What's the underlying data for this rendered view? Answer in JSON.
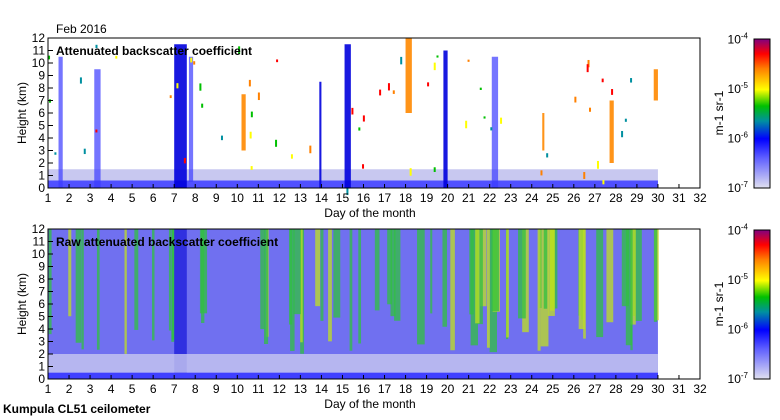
{
  "header": {
    "month_label": "Feb 2016"
  },
  "footer": {
    "site_label": "Kumpula CL51 ceilometer"
  },
  "chart_data": [
    {
      "type": "heatmap",
      "title": "Attenuated backscatter coefficient",
      "xlabel": "Day of the month",
      "ylabel": "Height (km)",
      "xlim": [
        1,
        32
      ],
      "ylim": [
        0,
        12
      ],
      "xticks": [
        "1",
        "2",
        "3",
        "4",
        "5",
        "6",
        "7",
        "8",
        "9",
        "10",
        "11",
        "12",
        "13",
        "14",
        "15",
        "16",
        "17",
        "18",
        "19",
        "20",
        "21",
        "22",
        "23",
        "24",
        "25",
        "26",
        "27",
        "28",
        "29",
        "30",
        "31",
        "32"
      ],
      "yticks": [
        "0",
        "1",
        "2",
        "3",
        "4",
        "5",
        "6",
        "7",
        "8",
        "9",
        "10",
        "11",
        "12"
      ],
      "data_end_day": 30,
      "boundary_layer_top_km": 1.5,
      "features": [
        {
          "day_start": 1.5,
          "day_end": 1.7,
          "h_bottom": 0,
          "h_top": 10.5,
          "level": "low"
        },
        {
          "day_start": 3.2,
          "day_end": 3.5,
          "h_bottom": 0,
          "h_top": 9.5,
          "level": "low"
        },
        {
          "day_start": 7.0,
          "day_end": 7.6,
          "h_bottom": 0,
          "h_top": 11.5,
          "level": "mid"
        },
        {
          "day_start": 7.7,
          "day_end": 7.9,
          "h_bottom": 0.5,
          "h_top": 10.5,
          "level": "low"
        },
        {
          "day_start": 10.2,
          "day_end": 10.4,
          "h_bottom": 3,
          "h_top": 7.5,
          "level": "high"
        },
        {
          "day_start": 13.9,
          "day_end": 14.0,
          "h_bottom": 0,
          "h_top": 8.5,
          "level": "mid"
        },
        {
          "day_start": 15.1,
          "day_end": 15.4,
          "h_bottom": 0,
          "h_top": 11.5,
          "level": "mid"
        },
        {
          "day_start": 18.0,
          "day_end": 18.3,
          "h_bottom": 6,
          "h_top": 12,
          "level": "high"
        },
        {
          "day_start": 19.8,
          "day_end": 20.0,
          "h_bottom": 0,
          "h_top": 11,
          "level": "mid"
        },
        {
          "day_start": 22.1,
          "day_end": 22.4,
          "h_bottom": 0,
          "h_top": 10.5,
          "level": "low"
        },
        {
          "day_start": 24.5,
          "day_end": 24.6,
          "h_bottom": 3,
          "h_top": 6,
          "level": "high"
        },
        {
          "day_start": 27.7,
          "day_end": 27.9,
          "h_bottom": 2,
          "h_top": 7,
          "level": "high"
        },
        {
          "day_start": 29.8,
          "day_end": 30.0,
          "h_bottom": 7,
          "h_top": 9.5,
          "level": "high"
        }
      ],
      "colorbar": {
        "label": "m-1 sr-1",
        "ticks": [
          "10-7",
          "10-6",
          "10-5",
          "10-4"
        ],
        "range": [
          1e-07,
          0.0001
        ],
        "scale": "log"
      }
    },
    {
      "type": "heatmap",
      "title": "Raw attenuated backscatter coefficient",
      "xlabel": "Day of the month",
      "ylabel": "Height (km)",
      "xlim": [
        1,
        32
      ],
      "ylim": [
        0,
        12
      ],
      "xticks": [
        "1",
        "2",
        "3",
        "4",
        "5",
        "6",
        "7",
        "8",
        "9",
        "10",
        "11",
        "12",
        "13",
        "14",
        "15",
        "16",
        "17",
        "18",
        "19",
        "20",
        "21",
        "22",
        "23",
        "24",
        "25",
        "26",
        "27",
        "28",
        "29",
        "30",
        "31",
        "32"
      ],
      "yticks": [
        "0",
        "1",
        "2",
        "3",
        "4",
        "5",
        "6",
        "7",
        "8",
        "9",
        "10",
        "11",
        "12"
      ],
      "data_end_day": 30,
      "colorbar": {
        "label": "m-1 sr-1",
        "ticks": [
          "10-7",
          "10-6",
          "10-5",
          "10-4"
        ],
        "range": [
          1e-07,
          0.0001
        ],
        "scale": "log"
      }
    }
  ],
  "colors": {
    "low": "#3a3aff",
    "mid": "#0000dd",
    "high": "#ff8800",
    "noise": "#30c040",
    "bg": "#ffffff"
  }
}
